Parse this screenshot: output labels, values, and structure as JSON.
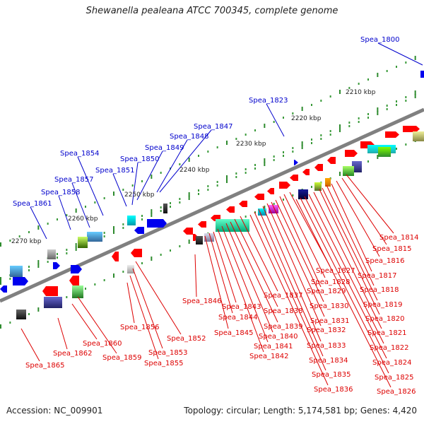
{
  "title": "Shewanella pealeana ATCC 700345, complete genome",
  "footer": {
    "accession_label": "Accession:",
    "accession": "NC_009901",
    "topology_label": "Topology:",
    "topology": "circular;",
    "length_label": "Length:",
    "length": "5,174,581 bp;",
    "genes_label": "Genes:",
    "genes": "4,420"
  },
  "colors": {
    "forward_label": "#0000cc",
    "reverse_label": "#dd0000",
    "backbone": "#808080"
  },
  "kbp_marks": [
    "2210 kbp",
    "2220 kbp",
    "2230 kbp",
    "2240 kbp",
    "2250 kbp",
    "2260 kbp",
    "2270 kbp"
  ],
  "forward_genes": [
    "Spea_1800",
    "Spea_1823",
    "Spea_1847",
    "Spea_1848",
    "Spea_1849",
    "Spea_1850",
    "Spea_1851",
    "Spea_1854",
    "Spea_1857",
    "Spea_1858",
    "Spea_1861"
  ],
  "reverse_genes": [
    "Spea_1814",
    "Spea_1815",
    "Spea_1816",
    "Spea_1817",
    "Spea_1818",
    "Spea_1819",
    "Spea_1820",
    "Spea_1821",
    "Spea_1822",
    "Spea_1824",
    "Spea_1825",
    "Spea_1826",
    "Spea_1827",
    "Spea_1828",
    "Spea_1829",
    "Spea_1830",
    "Spea_1831",
    "Spea_1832",
    "Spea_1833",
    "Spea_1834",
    "Spea_1835",
    "Spea_1836",
    "Spea_1837",
    "Spea_1838",
    "Spea_1839",
    "Spea_1840",
    "Spea_1841",
    "Spea_1842",
    "Spea_1843",
    "Spea_1844",
    "Spea_1845",
    "Spea_1846",
    "Spea_1852",
    "Spea_1853",
    "Spea_1855",
    "Spea_1856",
    "Spea_1859",
    "Spea_1860",
    "Spea_1862",
    "Spea_1865"
  ]
}
